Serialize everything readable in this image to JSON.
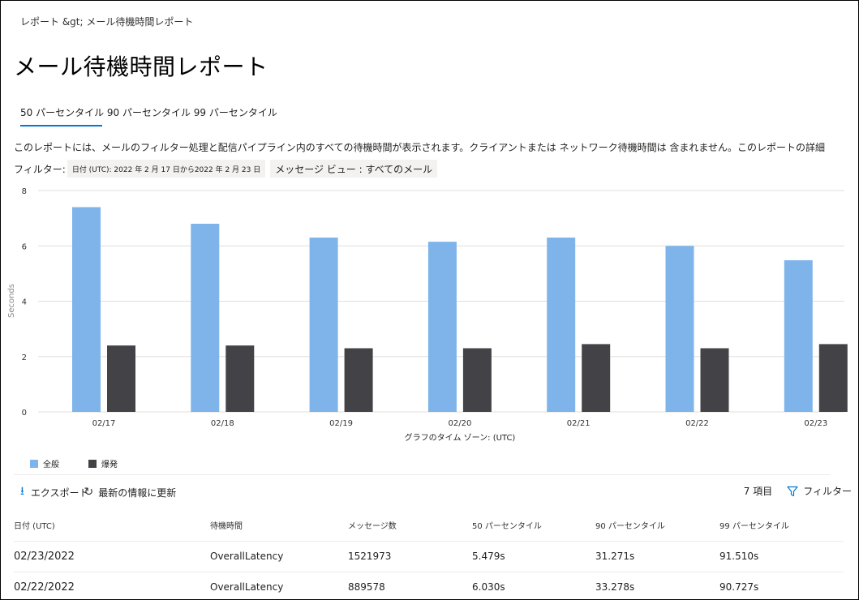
{
  "breadcrumb": "レポート &gt;  メール待機時間レポート",
  "page_title": "メール待機時間レポート",
  "tabs_label": "50 パーセンタイル 90 パーセンタイル 99 パーセンタイル",
  "description": "このレポートには、メールのフィルター処理と配信パイプライン内のすべての待機時間が表示されます。クライアントまたは ネットワーク待機時間は 含まれません。このレポートの詳細",
  "filters": {
    "label": "フィルター:",
    "date": "日付 (UTC): 2022 年 2 月 17 日から2022 年 2 月 23 日",
    "message_view": "メッセージ ビュー : すべてのメール"
  },
  "colors": {
    "accent": "#0078d4",
    "overall": "#7eb4ea",
    "burst": "#434246"
  },
  "chart_data": {
    "type": "bar",
    "categories": [
      "02/17",
      "02/18",
      "02/19",
      "02/20",
      "02/21",
      "02/22",
      "02/23"
    ],
    "series": [
      {
        "name": "全般",
        "values": [
          7.4,
          6.8,
          6.3,
          6.15,
          6.3,
          6.0,
          5.48
        ]
      },
      {
        "name": "爆発",
        "values": [
          2.4,
          2.4,
          2.3,
          2.3,
          2.45,
          2.3,
          2.45
        ]
      }
    ],
    "xlabel": "グラフのタイム ゾーン: (UTC)",
    "ylabel": "Seconds",
    "ylim": [
      0,
      8
    ],
    "yticks": [
      0,
      2,
      4,
      6,
      8
    ],
    "grid": true,
    "legend_position": "bottom-left"
  },
  "toolbar": {
    "export_label": "エクスポート",
    "refresh_label": "最新の情報に更新",
    "item_count": "7 項目",
    "filter_label": "フィルター"
  },
  "table": {
    "headers": [
      "日付 (UTC)",
      "待機時間",
      "メッセージ数",
      "50 パーセンタイル",
      "90 パーセンタイル",
      "99 パーセンタイル"
    ],
    "rows": [
      [
        "02/23/2022",
        "OverallLatency",
        "1521973",
        "5.479s",
        "31.271s",
        "91.510s"
      ],
      [
        "02/22/2022",
        "OverallLatency",
        "889578",
        "6.030s",
        "33.278s",
        "90.727s"
      ]
    ]
  }
}
